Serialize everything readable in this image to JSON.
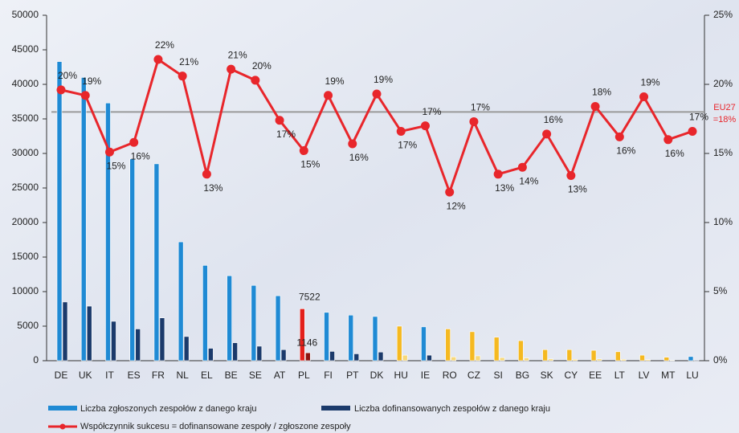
{
  "chart_data": {
    "type": "bar",
    "categories": [
      "DE",
      "UK",
      "IT",
      "ES",
      "FR",
      "NL",
      "EL",
      "BE",
      "SE",
      "AT",
      "PL",
      "FI",
      "PT",
      "DK",
      "HU",
      "IE",
      "RO",
      "CZ",
      "SI",
      "BG",
      "SK",
      "CY",
      "EE",
      "LT",
      "LV",
      "MT",
      "LU"
    ],
    "series": [
      {
        "name": "Liczba zgłoszonych zespołów z danego kraju",
        "color": "#1f8ad4",
        "colors": [
          "#1f8ad4",
          "#1f8ad4",
          "#1f8ad4",
          "#1f8ad4",
          "#1f8ad4",
          "#1f8ad4",
          "#1f8ad4",
          "#1f8ad4",
          "#1f8ad4",
          "#1f8ad4",
          "#e3201b",
          "#1f8ad4",
          "#1f8ad4",
          "#1f8ad4",
          "#f5b921",
          "#1f8ad4",
          "#f5b921",
          "#f5b921",
          "#f5b921",
          "#f5b921",
          "#f5b921",
          "#f5b921",
          "#f5b921",
          "#f5b921",
          "#f5b921",
          "#f5b921",
          "#1f8ad4"
        ],
        "values": [
          43300,
          41000,
          37300,
          29200,
          28500,
          17200,
          13800,
          12300,
          10900,
          9400,
          7522,
          7000,
          6600,
          6400,
          5000,
          4900,
          4600,
          4200,
          3400,
          2900,
          1600,
          1600,
          1500,
          1300,
          800,
          500,
          600
        ],
        "value_labels": [
          null,
          null,
          null,
          null,
          null,
          null,
          null,
          null,
          null,
          null,
          "7522",
          null,
          null,
          null,
          null,
          null,
          null,
          null,
          null,
          null,
          null,
          null,
          null,
          null,
          null,
          null,
          null
        ]
      },
      {
        "name": "Liczba dofinansowanych zespołów z danego kraju",
        "color": "#1b3a6b",
        "colors": [
          "#1b3a6b",
          "#1b3a6b",
          "#1b3a6b",
          "#1b3a6b",
          "#1b3a6b",
          "#1b3a6b",
          "#1b3a6b",
          "#1b3a6b",
          "#1b3a6b",
          "#1b3a6b",
          "#8e1410",
          "#1b3a6b",
          "#1b3a6b",
          "#1b3a6b",
          "#f7d87a",
          "#1b3a6b",
          "#f7d87a",
          "#f7d87a",
          "#f7d87a",
          "#f7d87a",
          "#f7d87a",
          "#f7d87a",
          "#f7d87a",
          "#f7d87a",
          "#f7d87a",
          "#f7d87a",
          "#1b3a6b"
        ],
        "values": [
          8500,
          7900,
          5700,
          4600,
          6200,
          3500,
          1800,
          2600,
          2100,
          1600,
          1146,
          1350,
          1000,
          1250,
          800,
          800,
          550,
          700,
          450,
          400,
          250,
          200,
          250,
          200,
          150,
          80,
          100
        ],
        "value_labels": [
          null,
          null,
          null,
          null,
          null,
          null,
          null,
          null,
          null,
          null,
          "1146",
          null,
          null,
          null,
          null,
          null,
          null,
          null,
          null,
          null,
          null,
          null,
          null,
          null,
          null,
          null,
          null
        ]
      },
      {
        "name": "Współczynnik sukcesu = dofinansowane zespoły / zgłoszone zespoły",
        "color": "#e8262b",
        "axis": "y2",
        "type": "line",
        "values": [
          19.6,
          19.2,
          15.1,
          15.8,
          21.8,
          20.6,
          13.5,
          21.1,
          20.3,
          17.4,
          15.2,
          19.2,
          15.7,
          19.3,
          16.6,
          17.0,
          12.2,
          17.3,
          13.5,
          14.0,
          16.4,
          13.4,
          18.4,
          16.2,
          19.1,
          16.0,
          16.6
        ],
        "value_labels": [
          "20%",
          "19%",
          "15%",
          "16%",
          "22%",
          "21%",
          "13%",
          "21%",
          "20%",
          "17%",
          "15%",
          "19%",
          "16%",
          "19%",
          "17%",
          "17%",
          "12%",
          "17%",
          "13%",
          "14%",
          "16%",
          "13%",
          "18%",
          "16%",
          "19%",
          "16%",
          "17%"
        ]
      }
    ],
    "ylim": [
      0,
      50000
    ],
    "yticks": [
      0,
      5000,
      10000,
      15000,
      20000,
      25000,
      30000,
      35000,
      40000,
      45000,
      50000
    ],
    "y2lim": [
      0,
      25
    ],
    "y2ticks": [
      {
        "value": 0,
        "label": "0%"
      },
      {
        "value": 5,
        "label": "5%"
      },
      {
        "value": 10,
        "label": "10%"
      },
      {
        "value": 15,
        "label": "15%"
      },
      {
        "value": 20,
        "label": "20%"
      },
      {
        "value": 25,
        "label": "25%"
      }
    ],
    "reference": {
      "value": 18,
      "axis": "y2",
      "color": "#9a9a9a",
      "label": [
        "EU27",
        "=18%"
      ]
    },
    "legend": "bottom"
  }
}
